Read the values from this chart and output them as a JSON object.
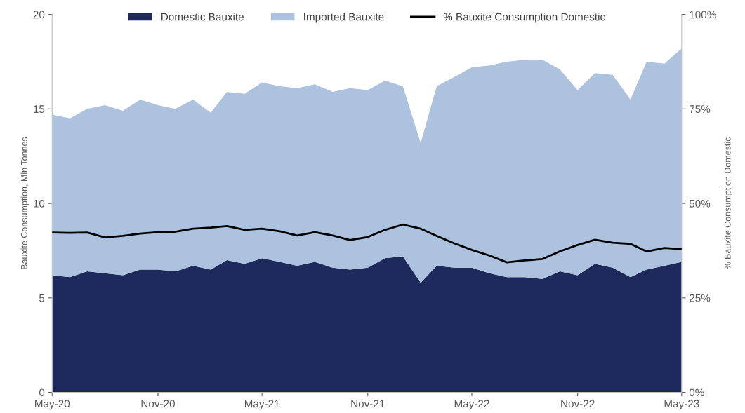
{
  "chart_data": {
    "type": "area",
    "stacked": true,
    "x": [
      "2020-05",
      "2020-06",
      "2020-07",
      "2020-08",
      "2020-09",
      "2020-10",
      "2020-11",
      "2020-12",
      "2021-01",
      "2021-02",
      "2021-03",
      "2021-04",
      "2021-05",
      "2021-06",
      "2021-07",
      "2021-08",
      "2021-09",
      "2021-10",
      "2021-11",
      "2021-12",
      "2022-01",
      "2022-02",
      "2022-03",
      "2022-04",
      "2022-05",
      "2022-06",
      "2022-07",
      "2022-08",
      "2022-09",
      "2022-10",
      "2022-11",
      "2022-12",
      "2023-01",
      "2023-02",
      "2023-03",
      "2023-04",
      "2023-05"
    ],
    "ylabel": "Bauxite Consumption, Mln Tonnes",
    "y2label": "% Bauxite Consumption Domestic",
    "series": [
      {
        "name": "Domestic Bauxite",
        "color": "#1f2a5c",
        "values": [
          6.2,
          6.1,
          6.4,
          6.3,
          6.2,
          6.5,
          6.5,
          6.4,
          6.7,
          6.5,
          7.0,
          6.8,
          7.1,
          6.9,
          6.7,
          6.9,
          6.6,
          6.5,
          6.6,
          7.1,
          7.2,
          5.8,
          6.7,
          6.6,
          6.6,
          6.3,
          6.1,
          6.1,
          6.0,
          6.4,
          6.2,
          6.8,
          6.6,
          6.1,
          6.5,
          6.7,
          6.9
        ]
      },
      {
        "name": "Imported Bauxite",
        "color": "#adc2df",
        "values": [
          8.5,
          8.4,
          8.6,
          8.9,
          8.7,
          9.0,
          8.7,
          8.6,
          8.8,
          8.3,
          8.9,
          9.0,
          9.3,
          9.3,
          9.4,
          9.4,
          9.3,
          9.6,
          9.4,
          9.4,
          9.0,
          7.4,
          9.5,
          10.1,
          10.6,
          11.0,
          11.4,
          11.5,
          11.6,
          10.7,
          9.8,
          10.1,
          10.2,
          9.4,
          11.0,
          10.7,
          11.3
        ]
      },
      {
        "name": "% Bauxite Consumption Domestic",
        "type": "line",
        "axis": "y2",
        "color": "#000000",
        "values": [
          42.3,
          42.2,
          42.3,
          41.0,
          41.4,
          42.0,
          42.4,
          42.5,
          43.3,
          43.6,
          44.0,
          43.0,
          43.3,
          42.6,
          41.5,
          42.4,
          41.5,
          40.3,
          41.1,
          43.0,
          44.4,
          43.3,
          41.4,
          39.4,
          37.7,
          36.2,
          34.4,
          34.9,
          35.3,
          37.3,
          39.0,
          40.4,
          39.6,
          39.3,
          37.3,
          38.2,
          37.9
        ]
      }
    ],
    "xlim": [
      "2020-05",
      "2023-05"
    ],
    "xticks": [
      {
        "value": "2020-05",
        "label": "May-20"
      },
      {
        "value": "2020-11",
        "label": "Nov-20"
      },
      {
        "value": "2021-05",
        "label": "May-21"
      },
      {
        "value": "2021-11",
        "label": "Nov-21"
      },
      {
        "value": "2022-05",
        "label": "May-22"
      },
      {
        "value": "2022-11",
        "label": "Nov-22"
      },
      {
        "value": "2023-05",
        "label": "May-23"
      }
    ],
    "ylim": [
      0,
      20
    ],
    "yticks": [
      0,
      5,
      10,
      15,
      20
    ],
    "y2lim": [
      0,
      100
    ],
    "y2ticks": [
      {
        "value": 0,
        "label": "0%"
      },
      {
        "value": 25,
        "label": "25%"
      },
      {
        "value": 50,
        "label": "50%"
      },
      {
        "value": 75,
        "label": "75%"
      },
      {
        "value": 100,
        "label": "100%"
      }
    ],
    "grid": false,
    "legend": "top"
  }
}
